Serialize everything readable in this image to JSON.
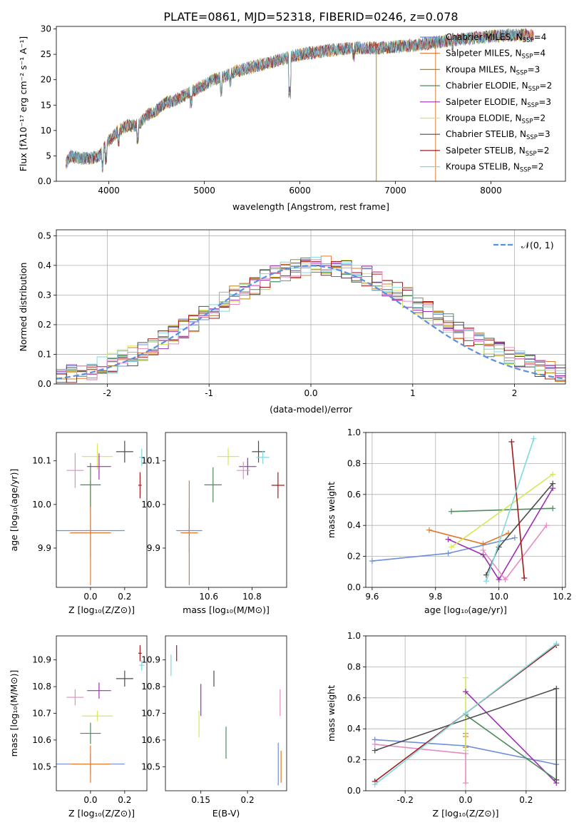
{
  "figure_title": "PLATE=0861, MJD=52318, FIBERID=0246, z=0.078",
  "colors": {
    "Chabrier MILES": "#6f8fd9",
    "Salpeter MILES": "#e07a2e",
    "Kroupa MILES": "#b8860b",
    "Chabrier ELODIE": "#4f8a5b",
    "Salpeter ELODIE": "#9b2fb5",
    "Kroupa ELODIE": "#d4e85a",
    "Chabrier STELIB": "#4d4d4d",
    "Salpeter STELIB": "#a31a1a",
    "Kroupa STELIB": "#7fd9e0",
    "Pink": "#e68bc2",
    "Normal": "#5b8fe0"
  },
  "chart_data": [
    {
      "id": "spectrum",
      "type": "line",
      "xlabel": "wavelength [Angstrom, rest frame]",
      "ylabel": "Flux [fλ10⁻¹⁷ erg cm⁻² s⁻¹ A⁻¹]",
      "xlim": [
        3450,
        8780
      ],
      "ylim": [
        0,
        30.5
      ],
      "xticks": [
        4000,
        5000,
        6000,
        7000,
        8000
      ],
      "yticks": [
        0,
        5,
        10,
        15,
        20,
        25,
        30
      ],
      "grid": false,
      "legend_position": "top-right",
      "legend": [
        {
          "name": "Chabrier MILES",
          "nssp": "4"
        },
        {
          "name": "Salpeter MILES",
          "nssp": "4"
        },
        {
          "name": "Kroupa MILES",
          "nssp": "3"
        },
        {
          "name": "Chabrier ELODIE",
          "nssp": "2"
        },
        {
          "name": "Salpeter ELODIE",
          "nssp": "3"
        },
        {
          "name": "Kroupa ELODIE",
          "nssp": "2"
        },
        {
          "name": "Chabrier STELIB",
          "nssp": "3"
        },
        {
          "name": "Salpeter STELIB",
          "nssp": "2"
        },
        {
          "name": "Kroupa STELIB",
          "nssp": "2"
        }
      ],
      "continuum": [
        [
          3550,
          3.5
        ],
        [
          3600,
          5
        ],
        [
          3700,
          4.5
        ],
        [
          3800,
          4.5
        ],
        [
          3900,
          5
        ],
        [
          4000,
          8
        ],
        [
          4100,
          10
        ],
        [
          4200,
          11
        ],
        [
          4300,
          11
        ],
        [
          4400,
          13
        ],
        [
          4500,
          14
        ],
        [
          4600,
          15.5
        ],
        [
          4700,
          16
        ],
        [
          4800,
          17
        ],
        [
          4900,
          18
        ],
        [
          5000,
          19
        ],
        [
          5100,
          20
        ],
        [
          5200,
          20.5
        ],
        [
          5300,
          21.5
        ],
        [
          5400,
          22
        ],
        [
          5500,
          22.5
        ],
        [
          5600,
          23
        ],
        [
          5700,
          23.5
        ],
        [
          5800,
          24
        ],
        [
          5900,
          24.5
        ],
        [
          6000,
          25
        ],
        [
          6200,
          25.5
        ],
        [
          6400,
          26
        ],
        [
          6600,
          26.3
        ],
        [
          6800,
          26.2
        ],
        [
          7000,
          26.5
        ],
        [
          7200,
          26.8
        ],
        [
          7400,
          27.3
        ],
        [
          7600,
          27.8
        ],
        [
          7800,
          28.2
        ],
        [
          8000,
          28.5
        ],
        [
          8200,
          28.8
        ],
        [
          8400,
          28.8
        ]
      ]
    },
    {
      "id": "residuals",
      "type": "histogram",
      "xlabel": "(data-model)/error",
      "ylabel": "Normed distribution",
      "xlim": [
        -2.5,
        2.5
      ],
      "ylim": [
        0,
        0.52
      ],
      "xticks": [
        -2,
        -1,
        0,
        1,
        2
      ],
      "yticks": [
        0.0,
        0.1,
        0.2,
        0.3,
        0.4,
        0.5
      ],
      "grid": true,
      "legend_label": "𝒩(0, 1)",
      "bin_width": 0.1
    },
    {
      "id": "age_vs_Z",
      "type": "errorbar",
      "xlabel": "Z [log₁₀(Z/Z⊙)]",
      "ylabel": "age  [log₁₀(age/yr)]",
      "xlim": [
        -0.2,
        0.33
      ],
      "ylim": [
        9.81,
        10.165
      ],
      "xticks": [
        0.0,
        0.2
      ],
      "yticks": [
        9.9,
        10.0,
        10.1
      ],
      "points": [
        {
          "series": "Chabrier MILES",
          "x": 0.0,
          "y": 9.94,
          "xerr": 0.2,
          "yerr": 0.06
        },
        {
          "series": "Salpeter MILES",
          "x": 0.0,
          "y": 9.935,
          "xerr": 0.12,
          "yerr": 0.12
        },
        {
          "series": "Chabrier ELODIE",
          "x": 0.0,
          "y": 10.045,
          "xerr": 0.06,
          "yerr": 0.05
        },
        {
          "series": "Kroupa ELODIE",
          "x": 0.04,
          "y": 10.11,
          "xerr": 0.09,
          "yerr": 0.03
        },
        {
          "series": "Salpeter ELODIE",
          "x": 0.05,
          "y": 10.087,
          "xerr": 0.07,
          "yerr": 0.03
        },
        {
          "series": "Pink",
          "x": -0.09,
          "y": 10.078,
          "xerr": 0.05,
          "yerr": 0.04
        },
        {
          "series": "Chabrier STELIB",
          "x": 0.2,
          "y": 10.121,
          "xerr": 0.05,
          "yerr": 0.025
        },
        {
          "series": "Kroupa STELIB",
          "x": 0.3,
          "y": 10.108,
          "xerr": 0.015,
          "yerr": 0.02
        },
        {
          "series": "Salpeter STELIB",
          "x": 0.29,
          "y": 10.044,
          "xerr": 0.01,
          "yerr": 0.03
        }
      ]
    },
    {
      "id": "age_vs_mass",
      "type": "errorbar",
      "xlabel": "mass [log₁₀(M/M⊙)]",
      "ylabel": "",
      "xlim": [
        10.4,
        10.96
      ],
      "ylim": [
        9.81,
        10.165
      ],
      "xticks": [
        10.6,
        10.8
      ],
      "yticks": [
        9.9,
        10.0,
        10.1
      ],
      "points": [
        {
          "series": "Chabrier MILES",
          "x": 10.51,
          "y": 9.94,
          "xerr": 0.06,
          "yerr": 0.05
        },
        {
          "series": "Salpeter MILES",
          "x": 10.51,
          "y": 9.935,
          "xerr": 0.04,
          "yerr": 0.12
        },
        {
          "series": "Chabrier ELODIE",
          "x": 10.62,
          "y": 10.045,
          "xerr": 0.04,
          "yerr": 0.04
        },
        {
          "series": "Kroupa ELODIE",
          "x": 10.69,
          "y": 10.11,
          "xerr": 0.05,
          "yerr": 0.02
        },
        {
          "series": "Salpeter ELODIE",
          "x": 10.78,
          "y": 10.087,
          "xerr": 0.04,
          "yerr": 0.02
        },
        {
          "series": "Pink",
          "x": 10.76,
          "y": 10.078,
          "xerr": 0.03,
          "yerr": 0.02
        },
        {
          "series": "Chabrier STELIB",
          "x": 10.83,
          "y": 10.121,
          "xerr": 0.03,
          "yerr": 0.025
        },
        {
          "series": "Kroupa STELIB",
          "x": 10.85,
          "y": 10.108,
          "xerr": 0.03,
          "yerr": 0.015
        },
        {
          "series": "Salpeter STELIB",
          "x": 10.92,
          "y": 10.044,
          "xerr": 0.03,
          "yerr": 0.03
        }
      ]
    },
    {
      "id": "massweight_vs_age",
      "type": "line",
      "xlabel": "age  [log₁₀(age/yr)]",
      "ylabel": "mass weight",
      "xlim": [
        9.58,
        10.21
      ],
      "ylim": [
        0,
        1.0
      ],
      "xticks": [
        9.6,
        9.8,
        10.0,
        10.2
      ],
      "yticks": [
        0.0,
        0.2,
        0.4,
        0.6,
        0.8,
        1.0
      ],
      "grid": true,
      "series": [
        {
          "name": "Chabrier MILES",
          "points": [
            [
              9.6,
              0.17
            ],
            [
              9.84,
              0.22
            ],
            [
              10.05,
              0.32
            ]
          ]
        },
        {
          "name": "Salpeter MILES",
          "points": [
            [
              9.78,
              0.37
            ],
            [
              9.95,
              0.28
            ],
            [
              10.03,
              0.35
            ]
          ]
        },
        {
          "name": "Chabrier ELODIE",
          "points": [
            [
              9.85,
              0.49
            ],
            [
              10.17,
              0.51
            ]
          ]
        },
        {
          "name": "Salpeter ELODIE",
          "points": [
            [
              9.84,
              0.31
            ],
            [
              9.95,
              0.21
            ],
            [
              10.0,
              0.05
            ],
            [
              10.17,
              0.64
            ]
          ]
        },
        {
          "name": "Kroupa ELODIE",
          "points": [
            [
              9.85,
              0.26
            ],
            [
              10.17,
              0.73
            ]
          ]
        },
        {
          "name": "Pink",
          "points": [
            [
              9.95,
              0.24
            ],
            [
              10.02,
              0.05
            ],
            [
              10.15,
              0.4
            ]
          ]
        },
        {
          "name": "Chabrier STELIB",
          "points": [
            [
              9.96,
              0.08
            ],
            [
              10.0,
              0.26
            ],
            [
              10.17,
              0.67
            ]
          ]
        },
        {
          "name": "Salpeter STELIB",
          "points": [
            [
              10.04,
              0.94
            ],
            [
              10.08,
              0.06
            ]
          ]
        },
        {
          "name": "Kroupa STELIB",
          "points": [
            [
              9.96,
              0.04
            ],
            [
              10.11,
              0.96
            ]
          ]
        }
      ]
    },
    {
      "id": "mass_vs_Z",
      "type": "errorbar",
      "xlabel": "Z [log₁₀(Z/Z⊙)]",
      "ylabel": "mass [log₁₀(M/M⊙)]",
      "xlim": [
        -0.2,
        0.33
      ],
      "ylim": [
        10.41,
        10.99
      ],
      "xticks": [
        0.0,
        0.2
      ],
      "yticks": [
        10.5,
        10.6,
        10.7,
        10.8,
        10.9
      ],
      "points": [
        {
          "series": "Chabrier MILES",
          "x": 0.0,
          "y": 10.51,
          "xerr": 0.2,
          "yerr": 0.04
        },
        {
          "series": "Salpeter MILES",
          "x": 0.0,
          "y": 10.51,
          "xerr": 0.12,
          "yerr": 0.07
        },
        {
          "series": "Chabrier ELODIE",
          "x": 0.0,
          "y": 10.625,
          "xerr": 0.06,
          "yerr": 0.04
        },
        {
          "series": "Kroupa ELODIE",
          "x": 0.04,
          "y": 10.69,
          "xerr": 0.09,
          "yerr": 0.02
        },
        {
          "series": "Salpeter ELODIE",
          "x": 0.05,
          "y": 10.785,
          "xerr": 0.07,
          "yerr": 0.03
        },
        {
          "series": "Pink",
          "x": -0.09,
          "y": 10.76,
          "xerr": 0.05,
          "yerr": 0.03
        },
        {
          "series": "Chabrier STELIB",
          "x": 0.2,
          "y": 10.83,
          "xerr": 0.05,
          "yerr": 0.03
        },
        {
          "series": "Kroupa STELIB",
          "x": 0.3,
          "y": 10.88,
          "xerr": 0.015,
          "yerr": 0.02
        },
        {
          "series": "Salpeter STELIB",
          "x": 0.29,
          "y": 10.925,
          "xerr": 0.01,
          "yerr": 0.03
        }
      ]
    },
    {
      "id": "mass_vs_ebv",
      "type": "errorbar",
      "xlabel": "E(B-V)",
      "ylabel": "",
      "xlim": [
        0.112,
        0.242
      ],
      "ylim": [
        10.41,
        10.99
      ],
      "xticks": [
        0.15,
        0.2
      ],
      "yticks": [
        10.5,
        10.6,
        10.7,
        10.8,
        10.9
      ],
      "points": [
        {
          "series": "Kroupa STELIB",
          "x": 0.118,
          "y": 10.88,
          "xerr": 0,
          "yerr": 0.04
        },
        {
          "series": "Salpeter STELIB",
          "x": 0.124,
          "y": 10.925,
          "xerr": 0,
          "yerr": 0.03
        },
        {
          "series": "Kroupa ELODIE",
          "x": 0.148,
          "y": 10.66,
          "xerr": 0,
          "yerr": 0.05
        },
        {
          "series": "Salpeter ELODIE",
          "x": 0.15,
          "y": 10.75,
          "xerr": 0,
          "yerr": 0.06
        },
        {
          "series": "Chabrier STELIB",
          "x": 0.164,
          "y": 10.83,
          "xerr": 0,
          "yerr": 0.03
        },
        {
          "series": "Chabrier ELODIE",
          "x": 0.177,
          "y": 10.59,
          "xerr": 0,
          "yerr": 0.06
        },
        {
          "series": "Pink",
          "x": 0.235,
          "y": 10.74,
          "xerr": 0,
          "yerr": 0.05
        },
        {
          "series": "Chabrier MILES",
          "x": 0.233,
          "y": 10.51,
          "xerr": 0,
          "yerr": 0.08
        },
        {
          "series": "Salpeter MILES",
          "x": 0.236,
          "y": 10.5,
          "xerr": 0,
          "yerr": 0.06
        }
      ]
    },
    {
      "id": "massweight_vs_Z",
      "type": "line",
      "xlabel": "Z [log₁₀(Z/Z⊙)]",
      "ylabel": "mass weight",
      "xlim": [
        -0.33,
        0.33
      ],
      "ylim": [
        0,
        1.0
      ],
      "xticks": [
        -0.2,
        0.0,
        0.2
      ],
      "yticks": [
        0.0,
        0.2,
        0.4,
        0.6,
        0.8,
        1.0
      ],
      "grid": true,
      "series": [
        {
          "name": "Chabrier MILES",
          "points": [
            [
              -0.3,
              0.33
            ],
            [
              0.0,
              0.29
            ],
            [
              0.3,
              0.17
            ]
          ]
        },
        {
          "name": "Salpeter MILES",
          "points": [
            [
              0.0,
              0.35
            ],
            [
              0.0,
              0.28
            ],
            [
              0.0,
              0.37
            ]
          ]
        },
        {
          "name": "Kroupa ELODIE",
          "points": [
            [
              0.0,
              0.73
            ],
            [
              0.0,
              0.26
            ]
          ]
        },
        {
          "name": "Salpeter ELODIE",
          "points": [
            [
              0.0,
              0.64
            ],
            [
              0.3,
              0.05
            ]
          ]
        },
        {
          "name": "Pink",
          "points": [
            [
              -0.3,
              0.3
            ],
            [
              0.0,
              0.24
            ],
            [
              0.0,
              0.05
            ]
          ]
        },
        {
          "name": "Chabrier ELODIE",
          "points": [
            [
              0.0,
              0.49
            ],
            [
              0.3,
              0.07
            ]
          ]
        },
        {
          "name": "Chabrier STELIB",
          "points": [
            [
              -0.3,
              0.26
            ],
            [
              0.3,
              0.66
            ],
            [
              0.3,
              0.07
            ]
          ]
        },
        {
          "name": "Salpeter STELIB",
          "points": [
            [
              -0.3,
              0.06
            ],
            [
              0.3,
              0.94
            ]
          ]
        },
        {
          "name": "Kroupa STELIB",
          "points": [
            [
              -0.3,
              0.04
            ],
            [
              0.0,
              0.5
            ],
            [
              0.3,
              0.95
            ]
          ]
        }
      ]
    }
  ]
}
